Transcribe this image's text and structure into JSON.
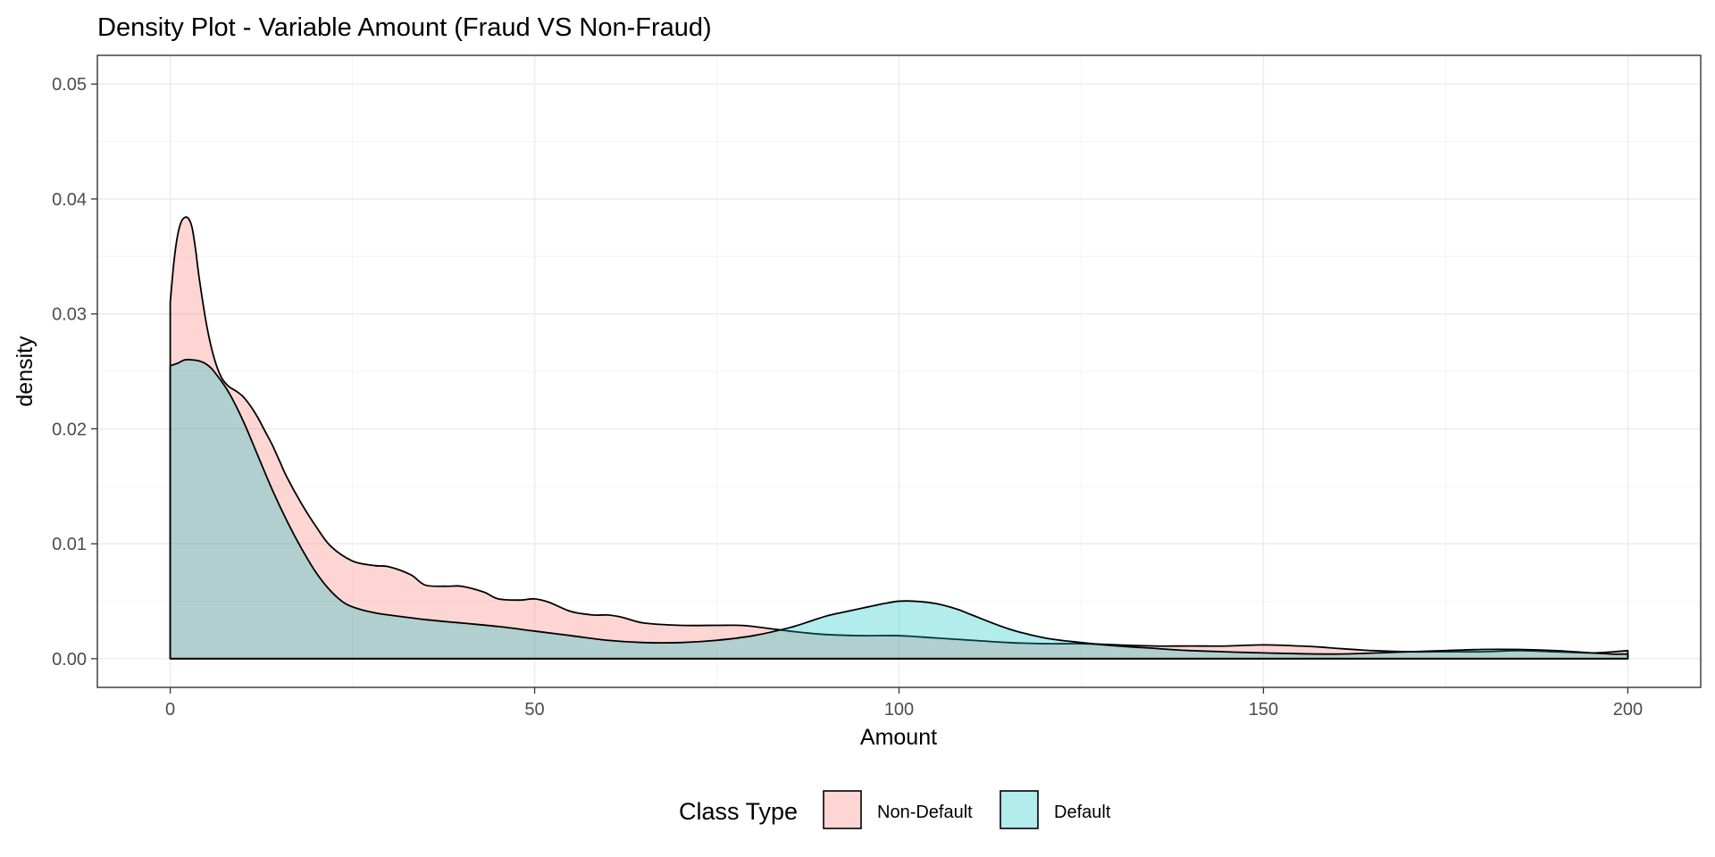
{
  "chart_data": {
    "type": "area",
    "title": "Density Plot - Variable Amount (Fraud VS Non-Fraud)",
    "xlabel": "Amount",
    "ylabel": "density",
    "xlim": [
      -10,
      210
    ],
    "ylim": [
      -0.0025,
      0.0525
    ],
    "x_ticks": [
      0,
      50,
      100,
      150,
      200
    ],
    "x_tick_labels": [
      "0",
      "50",
      "100",
      "150",
      "200"
    ],
    "x_minor_ticks": [
      25,
      75,
      125,
      175
    ],
    "y_ticks": [
      0,
      0.01,
      0.02,
      0.03,
      0.04,
      0.05
    ],
    "y_tick_labels": [
      "0.00",
      "0.01",
      "0.02",
      "0.03",
      "0.04",
      "0.05"
    ],
    "y_minor_ticks": [
      0.005,
      0.015,
      0.025,
      0.035,
      0.045
    ],
    "grid": true,
    "legend": {
      "title": "Class Type",
      "position": "bottom",
      "entries": [
        {
          "label": "Non-Default",
          "color": "#f8766d"
        },
        {
          "label": "Default",
          "color": "#00bfc4"
        }
      ]
    },
    "fill_opacity": 0.3,
    "series": [
      {
        "name": "Non-Default",
        "color": "#f8766d",
        "x": [
          0,
          0.5,
          1,
          1.5,
          2,
          2.5,
          3,
          3.5,
          4,
          5,
          6,
          7,
          8,
          9,
          10,
          11,
          12,
          13,
          14,
          15,
          16,
          18,
          20,
          22,
          25,
          28,
          30,
          33,
          35,
          38,
          40,
          43,
          45,
          48,
          50,
          52,
          55,
          58,
          60,
          62,
          65,
          70,
          75,
          78,
          80,
          85,
          88,
          90,
          95,
          100,
          105,
          110,
          115,
          120,
          125,
          130,
          135,
          140,
          145,
          150,
          155,
          158,
          160,
          165,
          170,
          175,
          180,
          185,
          190,
          195,
          198,
          200
        ],
        "values": [
          0.031,
          0.0345,
          0.0368,
          0.038,
          0.0384,
          0.0383,
          0.0375,
          0.0355,
          0.033,
          0.029,
          0.0262,
          0.0245,
          0.0237,
          0.0233,
          0.0228,
          0.022,
          0.021,
          0.0198,
          0.0186,
          0.0172,
          0.0158,
          0.0135,
          0.0115,
          0.0098,
          0.0085,
          0.0081,
          0.008,
          0.0073,
          0.0064,
          0.0063,
          0.0063,
          0.0058,
          0.0052,
          0.0051,
          0.0052,
          0.0049,
          0.0041,
          0.0038,
          0.0038,
          0.0036,
          0.0031,
          0.0029,
          0.0029,
          0.0029,
          0.0028,
          0.0024,
          0.0022,
          0.0021,
          0.002,
          0.002,
          0.0018,
          0.0016,
          0.0014,
          0.0013,
          0.0013,
          0.0012,
          0.0011,
          0.0011,
          0.0011,
          0.0012,
          0.0011,
          0.001,
          0.0009,
          0.0007,
          0.0006,
          0.0006,
          0.0006,
          0.0007,
          0.0006,
          0.0005,
          0.0006,
          0.0007
        ]
      },
      {
        "name": "Default",
        "color": "#00bfc4",
        "x": [
          0,
          1,
          2,
          3,
          4,
          5,
          6,
          8,
          10,
          12,
          14,
          16,
          18,
          20,
          22,
          24,
          26,
          28,
          30,
          35,
          40,
          45,
          50,
          55,
          60,
          65,
          70,
          75,
          80,
          85,
          88,
          90,
          92,
          95,
          98,
          100,
          102,
          105,
          108,
          110,
          115,
          120,
          125,
          130,
          135,
          140,
          150,
          160,
          170,
          175,
          180,
          185,
          190,
          195,
          198,
          200
        ],
        "values": [
          0.0255,
          0.0257,
          0.026,
          0.026,
          0.0259,
          0.0256,
          0.025,
          0.0232,
          0.0207,
          0.0177,
          0.0147,
          0.012,
          0.0096,
          0.0075,
          0.0059,
          0.0048,
          0.0043,
          0.004,
          0.0038,
          0.0034,
          0.0031,
          0.0028,
          0.0024,
          0.002,
          0.0016,
          0.0014,
          0.0014,
          0.0016,
          0.002,
          0.0027,
          0.0033,
          0.0037,
          0.004,
          0.0044,
          0.0048,
          0.005,
          0.005,
          0.0048,
          0.0043,
          0.0038,
          0.0026,
          0.0018,
          0.0014,
          0.0011,
          0.0009,
          0.0007,
          0.0005,
          0.0004,
          0.0006,
          0.0007,
          0.0008,
          0.0008,
          0.0007,
          0.0005,
          0.0004,
          0.0004
        ]
      }
    ]
  }
}
